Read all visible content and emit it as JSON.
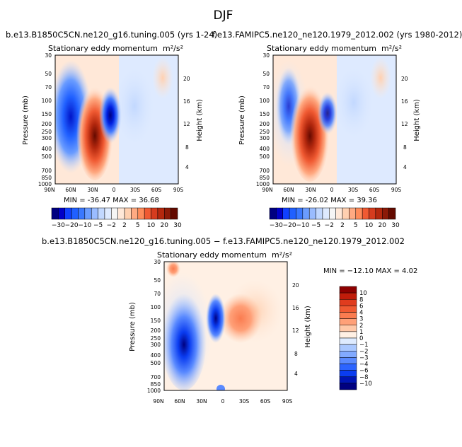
{
  "figure": {
    "title": "DJF"
  },
  "panels": [
    {
      "title": "b.e13.B1850C5CN.ne120_g16.tuning.005 (yrs 1-24)",
      "subtitle": "Stationary eddy momentum",
      "units": "m²/s²",
      "minmax": "MIN = -36.47   MAX =  36.68"
    },
    {
      "title": "f.e13.FAMIPC5.ne120_ne120.1979_2012.002 (yrs 1980-2012)",
      "subtitle": "Stationary eddy momentum",
      "units": "m²/s²",
      "minmax": "MIN = -26.02   MAX =  39.36"
    },
    {
      "title": "b.e13.B1850C5CN.ne120_g16.tuning.005 − f.e13.FAMIPC5.ne120_ne120.1979_2012.002",
      "subtitle": "Stationary eddy momentum",
      "units": "m²/s²",
      "minmax": "MIN = −12.10   MAX =   4.02"
    }
  ],
  "colorbar_main": {
    "labels": [
      "−30",
      "−20",
      "−10",
      "−5",
      "−2",
      "2",
      "5",
      "10",
      "20",
      "30"
    ],
    "colors": [
      "#000080",
      "#0000c8",
      "#1040ff",
      "#2060ff",
      "#3a78ff",
      "#6a9cff",
      "#9abcff",
      "#c2d8ff",
      "#deeaff",
      "#f5f5f5",
      "#ffe8d8",
      "#ffd0b0",
      "#ffaa82",
      "#ff8c5a",
      "#f05a32",
      "#d63c1e",
      "#b4280e",
      "#8c1a08",
      "#640a00"
    ]
  },
  "colorbar_diff": {
    "labels": [
      "10",
      "8",
      "6",
      "4",
      "3",
      "2",
      "1",
      "0",
      "−1",
      "−2",
      "−3",
      "−4",
      "−6",
      "−8",
      "−10"
    ],
    "colors": [
      "#8c0000",
      "#c01c0a",
      "#e03c1e",
      "#f05a32",
      "#fa7c50",
      "#ffa078",
      "#ffc8a8",
      "#fff0e4",
      "#deebff",
      "#aac8ff",
      "#82aaff",
      "#5a8aff",
      "#2c64ff",
      "#0a3cf0",
      "#0014b4",
      "#000080"
    ]
  },
  "chart_data": [
    {
      "type": "heatmap",
      "title": "b.e13.B1850C5CN.ne120_g16.tuning.005 (yrs 1-24)",
      "subtitle": "Stationary eddy momentum",
      "units": "m²/s²",
      "xlabel": "",
      "ylabel": "Pressure (mb)",
      "y2label": "Height (km)",
      "x_ticks": [
        "90N",
        "60N",
        "30N",
        "0",
        "30S",
        "60S",
        "90S"
      ],
      "y_ticks": [
        30,
        50,
        70,
        100,
        150,
        200,
        250,
        300,
        400,
        500,
        700,
        850,
        1000
      ],
      "y2_ticks": [
        4,
        8,
        12,
        16,
        20
      ],
      "ylim": [
        30,
        1000
      ],
      "min": -36.47,
      "max": 36.68,
      "levels": [
        -30,
        -20,
        -10,
        -5,
        -2,
        2,
        5,
        10,
        20,
        30
      ],
      "features": [
        {
          "lat": 55,
          "p": 170,
          "value": -30,
          "sign": "negative"
        },
        {
          "lat": 27,
          "p": 220,
          "value": 36.7,
          "sign": "positive"
        },
        {
          "lat": 5,
          "p": 150,
          "value": -36.5,
          "sign": "negative"
        }
      ]
    },
    {
      "type": "heatmap",
      "title": "f.e13.FAMIPC5.ne120_ne120.1979_2012.002 (yrs 1980-2012)",
      "subtitle": "Stationary eddy momentum",
      "units": "m²/s²",
      "xlabel": "",
      "ylabel": "Pressure (mb)",
      "y2label": "Height (km)",
      "x_ticks": [
        "90N",
        "60N",
        "30N",
        "0",
        "30S",
        "60S",
        "90S"
      ],
      "y_ticks": [
        30,
        50,
        70,
        100,
        150,
        200,
        250,
        300,
        400,
        500,
        700,
        850,
        1000
      ],
      "y2_ticks": [
        4,
        8,
        12,
        16,
        20
      ],
      "ylim": [
        30,
        1000
      ],
      "min": -26.02,
      "max": 39.36,
      "levels": [
        -30,
        -20,
        -10,
        -5,
        -2,
        2,
        5,
        10,
        20,
        30
      ],
      "features": [
        {
          "lat": 55,
          "p": 150,
          "value": -20,
          "sign": "negative"
        },
        {
          "lat": 28,
          "p": 220,
          "value": 39.4,
          "sign": "positive"
        },
        {
          "lat": 5,
          "p": 150,
          "value": -26.0,
          "sign": "negative"
        }
      ]
    },
    {
      "type": "heatmap",
      "title": "b.e13.B1850C5CN.ne120_g16.tuning.005 − f.e13.FAMIPC5.ne120_ne120.1979_2012.002",
      "subtitle": "Stationary eddy momentum",
      "units": "m²/s²",
      "xlabel": "",
      "ylabel": "Pressure (mb)",
      "y2label": "Height (km)",
      "x_ticks": [
        "90N",
        "60N",
        "30N",
        "0",
        "30S",
        "60S",
        "90S"
      ],
      "y_ticks": [
        30,
        50,
        70,
        100,
        150,
        200,
        250,
        300,
        400,
        500,
        700,
        850,
        1000
      ],
      "y2_ticks": [
        4,
        8,
        12,
        16,
        20
      ],
      "ylim": [
        30,
        1000
      ],
      "min": -12.1,
      "max": 4.02,
      "levels": [
        -10,
        -8,
        -6,
        -4,
        -3,
        -2,
        -1,
        0,
        1,
        2,
        3,
        4,
        6,
        8,
        10
      ],
      "features": [
        {
          "lat": 60,
          "p": 250,
          "value": -12.1,
          "sign": "negative"
        },
        {
          "lat": 12,
          "p": 150,
          "value": -10,
          "sign": "negative"
        },
        {
          "lat": -20,
          "p": 150,
          "value": 3,
          "sign": "positive"
        }
      ]
    }
  ]
}
